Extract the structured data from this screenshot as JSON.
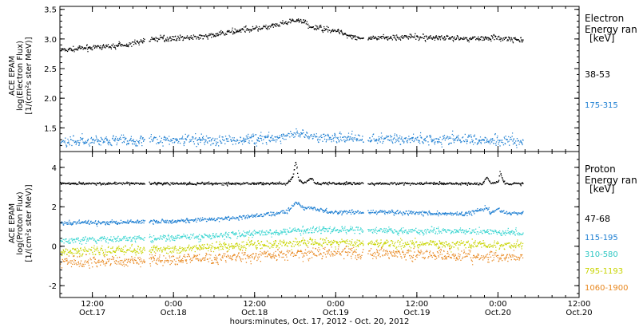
{
  "figure": {
    "xlabel": "hours:minutes, Oct. 17, 2012 - Oct. 20, 2012",
    "xticks": [
      {
        "t": 0.5,
        "time": "12:00",
        "date": "Oct.17"
      },
      {
        "t": 1.0,
        "time": "0:00",
        "date": "Oct.18"
      },
      {
        "t": 1.5,
        "time": "12:00",
        "date": "Oct.18"
      },
      {
        "t": 2.0,
        "time": "0:00",
        "date": "Oct.19"
      },
      {
        "t": 2.5,
        "time": "12:00",
        "date": "Oct.19"
      },
      {
        "t": 3.0,
        "time": "0:00",
        "date": "Oct.20"
      },
      {
        "t": 3.5,
        "time": "12:00",
        "date": "Oct.20"
      }
    ],
    "xlim": [
      0.3,
      3.5
    ],
    "data_gaps": [
      [
        0.82,
        0.845
      ],
      [
        2.17,
        2.195
      ]
    ]
  },
  "chart_data": [
    {
      "type": "scatter",
      "ylabel": [
        "ACE EPAM",
        "log(Electron Flux)",
        "[1/(cm²s ster MeV)]"
      ],
      "ylim": [
        1.1,
        3.55
      ],
      "yticks": [
        "1.5",
        "2.0",
        "2.5",
        "3.0",
        "3.5"
      ],
      "ytick_values": [
        1.5,
        2.0,
        2.5,
        3.0,
        3.5
      ],
      "legend_title": [
        "Electron",
        "Energy ran",
        "[keV]"
      ],
      "series": [
        {
          "name": "38-53",
          "color": "#000000",
          "points": [
            [
              0.3,
              2.82
            ],
            [
              0.5,
              2.86
            ],
            [
              0.7,
              2.9
            ],
            [
              0.85,
              3.0
            ],
            [
              1.0,
              3.02
            ],
            [
              1.2,
              3.05
            ],
            [
              1.4,
              3.15
            ],
            [
              1.6,
              3.22
            ],
            [
              1.75,
              3.32
            ],
            [
              1.82,
              3.28
            ],
            [
              1.83,
              3.2
            ],
            [
              1.95,
              3.18
            ],
            [
              2.1,
              3.05
            ],
            [
              2.2,
              3.0
            ],
            [
              2.4,
              3.05
            ],
            [
              2.6,
              3.03
            ],
            [
              2.8,
              3.02
            ],
            [
              3.0,
              3.02
            ],
            [
              3.15,
              2.97
            ]
          ],
          "noise": 0.02
        },
        {
          "name": "175-315",
          "color": "#1e7fd2",
          "points": [
            [
              0.3,
              1.28
            ],
            [
              0.7,
              1.29
            ],
            [
              1.0,
              1.3
            ],
            [
              1.3,
              1.3
            ],
            [
              1.65,
              1.33
            ],
            [
              1.75,
              1.4
            ],
            [
              1.9,
              1.35
            ],
            [
              2.2,
              1.32
            ],
            [
              2.6,
              1.32
            ],
            [
              3.0,
              1.3
            ],
            [
              3.15,
              1.27
            ]
          ],
          "noise": 0.04
        }
      ]
    },
    {
      "type": "scatter",
      "ylabel": [
        "ACE EPAM",
        "log(Proton Flux)",
        "[1/(cm²s ster MeV)]"
      ],
      "ylim": [
        -2.6,
        4.8
      ],
      "yticks": [
        "-2",
        "0",
        "2",
        "4"
      ],
      "ytick_values": [
        -2,
        0,
        2,
        4
      ],
      "legend_title": [
        "Proton",
        "Energy ran",
        "[keV]"
      ],
      "series": [
        {
          "name": "47-68",
          "color": "#000000",
          "points": [
            [
              0.3,
              3.2
            ],
            [
              1.7,
              3.2
            ],
            [
              1.73,
              3.5
            ],
            [
              1.75,
              4.3
            ],
            [
              1.77,
              3.4
            ],
            [
              1.8,
              3.2
            ],
            [
              1.85,
              3.5
            ],
            [
              1.87,
              3.2
            ],
            [
              2.9,
              3.2
            ],
            [
              2.93,
              3.5
            ],
            [
              2.95,
              3.2
            ],
            [
              3.0,
              3.3
            ],
            [
              3.01,
              3.8
            ],
            [
              3.03,
              3.3
            ],
            [
              3.05,
              3.2
            ],
            [
              3.15,
              3.2
            ]
          ],
          "noise": 0.03
        },
        {
          "name": "115-195",
          "color": "#1e7fd2",
          "points": [
            [
              0.3,
              1.2
            ],
            [
              1.0,
              1.3
            ],
            [
              1.3,
              1.4
            ],
            [
              1.5,
              1.55
            ],
            [
              1.7,
              1.8
            ],
            [
              1.75,
              2.3
            ],
            [
              1.8,
              1.9
            ],
            [
              1.85,
              2.0
            ],
            [
              1.95,
              1.75
            ],
            [
              2.3,
              1.75
            ],
            [
              2.8,
              1.65
            ],
            [
              2.93,
              2.0
            ],
            [
              2.95,
              1.7
            ],
            [
              3.0,
              1.9
            ],
            [
              3.05,
              1.7
            ],
            [
              3.15,
              1.7
            ]
          ],
          "noise": 0.05
        },
        {
          "name": "310-580",
          "color": "#3ed6d2",
          "points": [
            [
              0.3,
              0.3
            ],
            [
              1.0,
              0.45
            ],
            [
              1.4,
              0.6
            ],
            [
              1.7,
              0.75
            ],
            [
              1.85,
              0.85
            ],
            [
              2.2,
              0.85
            ],
            [
              2.6,
              0.8
            ],
            [
              3.0,
              0.75
            ],
            [
              3.15,
              0.7
            ]
          ],
          "noise": 0.08
        },
        {
          "name": "795-1193",
          "color": "#c8d400",
          "points": [
            [
              0.3,
              -0.25
            ],
            [
              1.0,
              -0.15
            ],
            [
              1.4,
              0.05
            ],
            [
              1.8,
              0.2
            ],
            [
              2.2,
              0.2
            ],
            [
              2.6,
              0.15
            ],
            [
              3.0,
              0.1
            ],
            [
              3.15,
              0.05
            ]
          ],
          "noise": 0.1
        },
        {
          "name": "1060-1900",
          "color": "#e8871e",
          "points": [
            [
              0.3,
              -0.8
            ],
            [
              1.0,
              -0.65
            ],
            [
              1.4,
              -0.5
            ],
            [
              1.8,
              -0.35
            ],
            [
              2.2,
              -0.3
            ],
            [
              2.6,
              -0.4
            ],
            [
              3.0,
              -0.5
            ],
            [
              3.15,
              -0.55
            ]
          ],
          "noise": 0.13
        }
      ]
    }
  ]
}
